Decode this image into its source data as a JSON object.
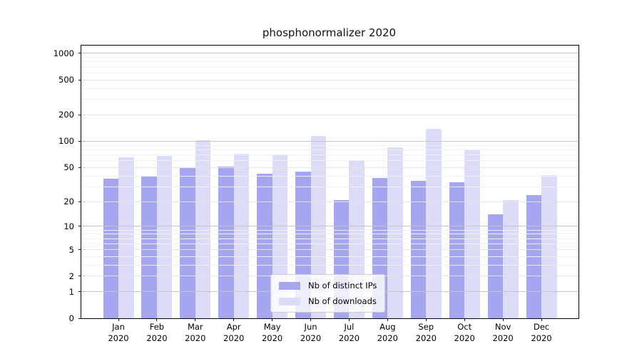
{
  "chart_data": {
    "type": "bar",
    "title": "phosphonormalizer 2020",
    "year_label": "2020",
    "categories": [
      "Jan",
      "Feb",
      "Mar",
      "Apr",
      "May",
      "Jun",
      "Jul",
      "Aug",
      "Sep",
      "Oct",
      "Nov",
      "Dec"
    ],
    "series": [
      {
        "name": "Nb of distinct IPs",
        "color": "#a5a5f0",
        "values": [
          37,
          40,
          49,
          51,
          42,
          45,
          21,
          38,
          35,
          34,
          14,
          24
        ]
      },
      {
        "name": "Nb of downloads",
        "color": "#dcdcf8",
        "values": [
          65,
          68,
          102,
          72,
          71,
          115,
          61,
          86,
          140,
          80,
          21,
          41
        ]
      }
    ],
    "yscale": "log1p",
    "yticks": [
      0,
      1,
      2,
      5,
      10,
      20,
      50,
      100,
      200,
      500,
      1000
    ],
    "ylim": [
      0,
      1200
    ],
    "xlabel": "",
    "ylabel": "",
    "grid": true,
    "legend_position": "lower center"
  },
  "colors": {
    "decade_gridline": "#c4c4c4",
    "major_gridline": "#e4e4e4",
    "minor_gridline": "#f0f0f0",
    "axis": "#000000",
    "legend_border": "#cccccc",
    "legend_background": "rgba(255,255,255,0.8)"
  }
}
